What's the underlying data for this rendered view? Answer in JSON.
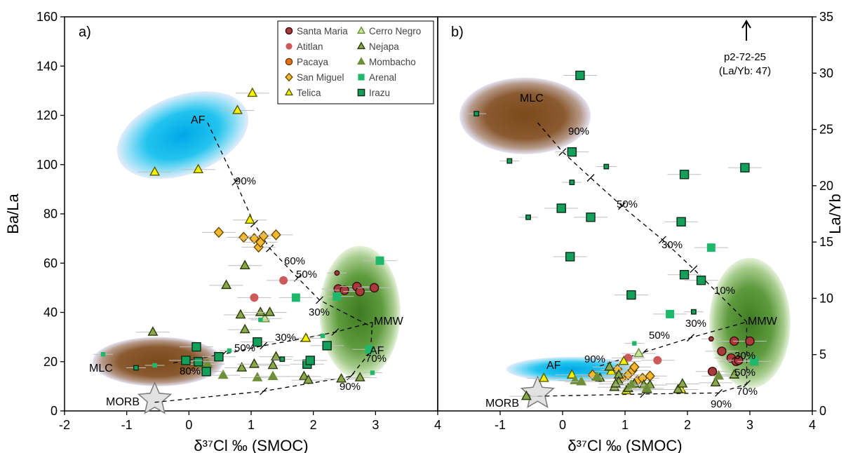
{
  "panels": [
    {
      "letter": "a)",
      "xlabel": "δ³⁷Cl ‰ (SMOC)",
      "ylabel": "Ba/La"
    },
    {
      "letter": "b)",
      "xlabel": "δ³⁷Cl ‰ (SMOC)",
      "ylabel": "La/Yb"
    }
  ],
  "legend": [
    {
      "name": "Santa Maria",
      "marker": "circle",
      "color": "#a83a3a",
      "stroke": "#3a0c0c"
    },
    {
      "name": "Atitlan",
      "marker": "circle-nostroke",
      "color": "#cd5a5a"
    },
    {
      "name": "Pacaya",
      "marker": "circle",
      "color": "#e0701a",
      "stroke": "#7a3a00"
    },
    {
      "name": "San Miguel",
      "marker": "diamond",
      "color": "#f5b82e",
      "stroke": "#6b4a00"
    },
    {
      "name": "Telica",
      "marker": "triangle",
      "color": "#f5f000",
      "stroke": "#5a5a00"
    },
    {
      "name": "Cerro Negro",
      "marker": "triangle",
      "color": "#c9e59a",
      "stroke": "#6b8a3a"
    },
    {
      "name": "Nejapa",
      "marker": "triangle",
      "color": "#8aa84a",
      "stroke": "#2c3a10"
    },
    {
      "name": "Mombacho",
      "marker": "triangle",
      "color": "#6e8f3a",
      "stroke": "#6e8f3a"
    },
    {
      "name": "Arenal",
      "marker": "square-nostroke",
      "color": "#1fb86a"
    },
    {
      "name": "Irazu",
      "marker": "square",
      "color": "#12a05a",
      "stroke": "#0b2a18"
    }
  ],
  "annotations": {
    "a": {
      "AF": "AF",
      "MLC": "MLC",
      "MMW": "MMW",
      "AF2": "AF",
      "MORB": "MORB",
      "p90top": "90%",
      "p60": "60%",
      "p50": "50%",
      "p30": "30%",
      "p30b": "30%",
      "p50b": "50%",
      "p80": "80%",
      "p70": "70%",
      "p90bot": "90%"
    },
    "b": {
      "MLC": "MLC",
      "AF": "AF",
      "MMW": "MMW",
      "MORB": "MORB",
      "p90": "90%",
      "p50": "50%",
      "p30": "30%",
      "p10": "10%",
      "p30c": "30%",
      "p50c": "50%",
      "p90c": "90%",
      "p30r": "30%",
      "p50r": "50%",
      "p70r": "70%",
      "p90r": "90%",
      "outlier1": "p2-72-25",
      "outlier2": "(La/Yb: 47)"
    }
  },
  "chart_data": [
    {
      "type": "scatter",
      "title": "a)",
      "xlabel": "δ³⁷Cl ‰ (SMOC)",
      "ylabel": "Ba/La",
      "xlim": [
        -2,
        4
      ],
      "ylim": [
        0,
        160
      ],
      "xticks": [
        "-2",
        "-1",
        "0",
        "1",
        "2",
        "3",
        "4"
      ],
      "yticks": [
        "0",
        "20",
        "40",
        "60",
        "80",
        "100",
        "120",
        "140",
        "160"
      ],
      "fields": [
        {
          "name": "AF",
          "center": [
            -0.1,
            112
          ],
          "radii": [
            1.1,
            16
          ],
          "rotation_deg": -20,
          "color": "#22c4ee"
        },
        {
          "name": "MLC",
          "center": [
            -0.5,
            20
          ],
          "radii": [
            1.05,
            10
          ],
          "rotation_deg": 0,
          "color": "#7a4a1a"
        },
        {
          "name": "MMW",
          "center": [
            2.75,
            40
          ],
          "radii": [
            0.65,
            27
          ],
          "rotation_deg": 0,
          "color": "#4e8a2e"
        }
      ],
      "series": [
        {
          "name": "Santa Maria",
          "points": [
            [
              2.4,
              49.5
            ],
            [
              2.5,
              49
            ],
            [
              2.7,
              50.5
            ],
            [
              2.75,
              48.5
            ],
            [
              2.98,
              50
            ]
          ],
          "small": [
            [
              2.38,
              56
            ]
          ]
        },
        {
          "name": "Atitlan",
          "points": [
            [
              1.05,
              46
            ],
            [
              1.52,
              53
            ]
          ]
        },
        {
          "name": "San Miguel",
          "points": [
            [
              0.48,
              72.5
            ],
            [
              0.88,
              70.5
            ],
            [
              1.05,
              70
            ],
            [
              1.12,
              66.5
            ],
            [
              1.15,
              68.5
            ],
            [
              1.2,
              71
            ],
            [
              1.4,
              71.5
            ]
          ]
        },
        {
          "name": "Telica",
          "points": [
            [
              -0.55,
              97
            ],
            [
              0.15,
              98
            ],
            [
              0.78,
              122
            ],
            [
              1.02,
              129
            ],
            [
              0.98,
              77.5
            ],
            [
              1.88,
              29.5
            ]
          ]
        },
        {
          "name": "Cerro Negro",
          "points": [
            [
              1.22,
              37.5
            ]
          ]
        },
        {
          "name": "Nejapa",
          "points": [
            [
              -0.58,
              32
            ],
            [
              0.6,
              51
            ],
            [
              0.9,
              59
            ],
            [
              0.83,
              39
            ],
            [
              0.9,
              33
            ],
            [
              1.15,
              40
            ],
            [
              1.3,
              40
            ],
            [
              0.85,
              17.5
            ],
            [
              1.05,
              19
            ],
            [
              1.35,
              18.5
            ],
            [
              1.4,
              22
            ],
            [
              1.85,
              14
            ],
            [
              1.92,
              12.5
            ],
            [
              2.45,
              13
            ],
            [
              2.75,
              13.5
            ]
          ]
        },
        {
          "name": "Mombacho",
          "points": [
            [
              0.2,
              19
            ],
            [
              0.3,
              19
            ],
            [
              0.55,
              14.5
            ],
            [
              1.1,
              13.5
            ],
            [
              1.35,
              14
            ]
          ]
        },
        {
          "name": "Arenal",
          "points": [
            [
              1.72,
              46
            ],
            [
              2.38,
              46.5
            ],
            [
              3.07,
              61
            ],
            [
              2.9,
              25
            ]
          ],
          "small": [
            [
              1.15,
              37
            ],
            [
              -1.38,
              23
            ],
            [
              0.65,
              24.5
            ],
            [
              2.15,
              30.5
            ],
            [
              2.95,
              15.5
            ],
            [
              -0.55,
              18.5
            ]
          ]
        },
        {
          "name": "Irazu",
          "points": [
            [
              0.12,
              26
            ],
            [
              0.15,
              20
            ],
            [
              -0.05,
              20.5
            ],
            [
              0.48,
              22
            ],
            [
              1.1,
              28
            ],
            [
              0.28,
              16
            ],
            [
              1.9,
              19
            ],
            [
              1.95,
              20.5
            ],
            [
              2.22,
              26.5
            ]
          ],
          "small": [
            [
              -0.85,
              17.5
            ],
            [
              1.5,
              21
            ]
          ]
        }
      ],
      "mixing_lines": [
        {
          "from": "AF",
          "path": [
            [
              0.3,
              117
            ],
            [
              0.75,
              93
            ],
            [
              1.05,
              76
            ],
            [
              1.3,
              66
            ],
            [
              1.75,
              54
            ],
            [
              2.1,
              45
            ],
            [
              2.95,
              34
            ]
          ]
        },
        {
          "from": "MLC",
          "path": [
            [
              -0.25,
              19.5
            ],
            [
              0.55,
              23
            ],
            [
              1.2,
              26.5
            ],
            [
              1.85,
              29.5
            ],
            [
              2.35,
              32
            ],
            [
              2.95,
              36
            ]
          ]
        },
        {
          "from": "MORB",
          "path": [
            [
              -0.55,
              3.5
            ],
            [
              1.2,
              8
            ],
            [
              2.6,
              14
            ],
            [
              2.92,
              24
            ],
            [
              2.95,
              36
            ]
          ]
        }
      ]
    },
    {
      "type": "scatter",
      "title": "b)",
      "xlabel": "δ³⁷Cl ‰ (SMOC)",
      "ylabel": "La/Yb",
      "xlim": [
        -2,
        4
      ],
      "ylim": [
        0,
        35
      ],
      "xticks": [
        "-1",
        "0",
        "1",
        "2",
        "3",
        "4"
      ],
      "yticks": [
        "0",
        "5",
        "10",
        "15",
        "20",
        "25",
        "30",
        "35"
      ],
      "fields": [
        {
          "name": "MLC",
          "center": [
            -0.6,
            26.2
          ],
          "radii": [
            1.05,
            3.4
          ],
          "rotation_deg": 0,
          "color": "#7a4a1a"
        },
        {
          "name": "AF",
          "center": [
            0.15,
            3.7
          ],
          "radii": [
            1.05,
            1.1
          ],
          "rotation_deg": 0,
          "color": "#22c4ee"
        },
        {
          "name": "MMW",
          "center": [
            3.0,
            7.8
          ],
          "radii": [
            0.65,
            5.8
          ],
          "rotation_deg": 0,
          "color": "#4e8a2e"
        }
      ],
      "series": [
        {
          "name": "Santa Maria",
          "points": [
            [
              2.4,
              3.5
            ],
            [
              2.55,
              5.3
            ],
            [
              2.7,
              4.7
            ],
            [
              2.75,
              6.2
            ],
            [
              2.78,
              4.4
            ],
            [
              2.82,
              4.5
            ],
            [
              3.0,
              6.2
            ]
          ],
          "small": [
            [
              2.38,
              6.4
            ]
          ]
        },
        {
          "name": "Atitlan",
          "points": [
            [
              1.05,
              4.7
            ],
            [
              1.52,
              4.5
            ]
          ]
        },
        {
          "name": "San Miguel",
          "points": [
            [
              0.48,
              3.2
            ],
            [
              0.88,
              3.7
            ],
            [
              0.95,
              2.9
            ],
            [
              1.05,
              3.2
            ],
            [
              1.12,
              3.6
            ],
            [
              1.15,
              3.9
            ],
            [
              1.2,
              2.7
            ],
            [
              1.28,
              2.9
            ],
            [
              1.4,
              3.1
            ]
          ]
        },
        {
          "name": "Telica",
          "points": [
            [
              -0.3,
              2.9
            ],
            [
              0.15,
              3.2
            ],
            [
              0.78,
              3.5
            ],
            [
              0.98,
              4.4
            ],
            [
              1.02,
              1.8
            ],
            [
              1.9,
              1.9
            ]
          ]
        },
        {
          "name": "Cerro Negro",
          "points": [
            [
              1.22,
              5.1
            ]
          ]
        },
        {
          "name": "Nejapa",
          "points": [
            [
              -0.58,
              1.3
            ],
            [
              0.6,
              2.9
            ],
            [
              0.9,
              3.2
            ],
            [
              0.83,
              2.1
            ],
            [
              0.9,
              2.6
            ],
            [
              1.15,
              2.4
            ],
            [
              1.3,
              2.3
            ],
            [
              0.85,
              2.4
            ],
            [
              1.05,
              2.0
            ],
            [
              1.35,
              1.9
            ],
            [
              1.4,
              2.3
            ],
            [
              1.85,
              1.9
            ],
            [
              1.92,
              2.4
            ],
            [
              2.45,
              2.5
            ],
            [
              2.75,
              3.2
            ],
            [
              0.75,
              3.9
            ]
          ]
        },
        {
          "name": "Mombacho",
          "points": [
            [
              0.2,
              2.7
            ],
            [
              0.3,
              2.6
            ],
            [
              0.55,
              3.0
            ],
            [
              1.1,
              2.3
            ],
            [
              1.35,
              2.0
            ],
            [
              2.5,
              3.1
            ]
          ]
        },
        {
          "name": "Arenal",
          "points": [
            [
              1.72,
              8.6
            ],
            [
              2.38,
              14.5
            ],
            [
              3.07,
              4.4
            ]
          ],
          "small": [
            [
              1.15,
              6.0
            ]
          ]
        },
        {
          "name": "Irazu",
          "points": [
            [
              0.28,
              29.8
            ],
            [
              0.15,
              23.0
            ],
            [
              -0.02,
              18.0
            ],
            [
              0.45,
              17.2
            ],
            [
              0.12,
              13.7
            ],
            [
              1.95,
              21.0
            ],
            [
              2.92,
              21.6
            ],
            [
              1.9,
              16.8
            ],
            [
              1.95,
              12.1
            ],
            [
              2.22,
              11.6
            ],
            [
              1.1,
              10.3
            ]
          ],
          "small": [
            [
              -1.38,
              26.4
            ],
            [
              -0.85,
              22.2
            ],
            [
              0.7,
              21.7
            ],
            [
              0.15,
              20.3
            ],
            [
              -0.55,
              17.2
            ],
            [
              2.1,
              8.8
            ]
          ]
        }
      ],
      "mixing_lines": [
        {
          "from": "MLC",
          "path": [
            [
              -0.4,
              25.6
            ],
            [
              0.0,
              23.0
            ],
            [
              0.45,
              20.7
            ],
            [
              0.95,
              18.2
            ],
            [
              1.6,
              15.2
            ],
            [
              2.1,
              12.6
            ],
            [
              2.95,
              7.9
            ]
          ]
        },
        {
          "from": "AF",
          "path": [
            [
              0.6,
              4.0
            ],
            [
              1.3,
              5.2
            ],
            [
              2.05,
              6.5
            ],
            [
              2.95,
              7.9
            ]
          ]
        },
        {
          "from": "MORB",
          "path": [
            [
              -0.4,
              1.3
            ],
            [
              1.3,
              1.5
            ],
            [
              2.5,
              1.6
            ],
            [
              2.95,
              2.4
            ],
            [
              2.95,
              7.9
            ]
          ]
        }
      ]
    }
  ]
}
